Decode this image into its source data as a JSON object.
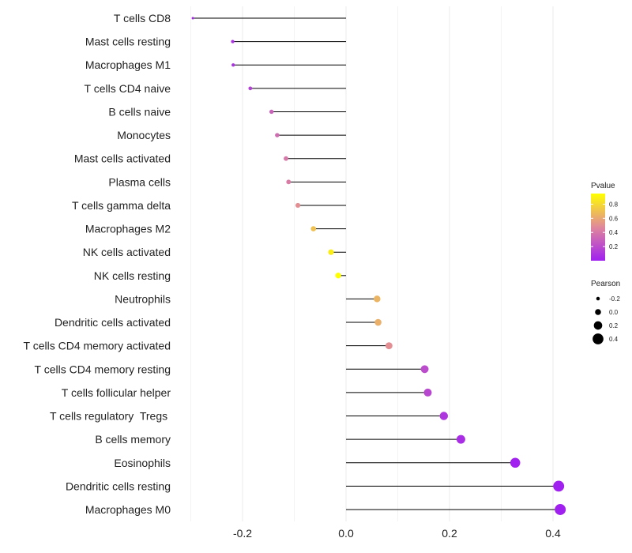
{
  "chart_data": {
    "type": "lollipop",
    "title": "",
    "xlabel": "",
    "ylabel": "",
    "xlim": [
      -0.3,
      0.42
    ],
    "xticks": [
      -0.2,
      0.0,
      0.2,
      0.4
    ],
    "xtick_labels": [
      "-0.2",
      "0.0",
      "0.2",
      "0.4"
    ],
    "grid": true,
    "baseline": 0,
    "categories": [
      "T cells CD8",
      "Mast cells resting",
      "Macrophages M1",
      "T cells CD4 naive",
      "B cells naive",
      "Monocytes",
      "Mast cells activated",
      "Plasma cells",
      "T cells gamma delta",
      "Macrophages M2",
      "NK cells activated",
      "NK cells resting",
      "Neutrophils",
      "Dendritic cells activated",
      "T cells CD4 memory activated",
      "T cells CD4 memory resting",
      "T cells follicular helper",
      "T cells regulatory  Tregs ",
      "B cells memory",
      "Eosinophils",
      "Dendritic cells resting",
      "Macrophages M0"
    ],
    "pearson": [
      -0.296,
      -0.219,
      -0.218,
      -0.185,
      -0.144,
      -0.133,
      -0.116,
      -0.111,
      -0.093,
      -0.063,
      -0.029,
      -0.015,
      0.06,
      0.062,
      0.083,
      0.152,
      0.158,
      0.189,
      0.222,
      0.327,
      0.411,
      0.414
    ],
    "pvalue": [
      0.03,
      0.08,
      0.08,
      0.15,
      0.3,
      0.35,
      0.4,
      0.42,
      0.5,
      0.7,
      0.88,
      0.95,
      0.65,
      0.63,
      0.5,
      0.2,
      0.18,
      0.1,
      0.06,
      0.01,
      0.001,
      0.001
    ],
    "colorbar": {
      "title": "Pvalue",
      "labels": [
        "0.8",
        "0.6",
        "0.4",
        "0.2"
      ],
      "values": [
        0.8,
        0.6,
        0.4,
        0.2
      ],
      "range": [
        0.0,
        0.95
      ],
      "low_color": "#a020f0",
      "mid_color": "#e0889b",
      "high_color": "#ffff00"
    },
    "size_legend": {
      "title": "Pearson",
      "labels": [
        "-0.2",
        "0.0",
        "0.2",
        "0.4"
      ],
      "values": [
        -0.2,
        0.0,
        0.2,
        0.4
      ]
    },
    "colors": {
      "stem": "#000000",
      "grid": "#ebebeb",
      "axis_text": "#222222"
    }
  }
}
